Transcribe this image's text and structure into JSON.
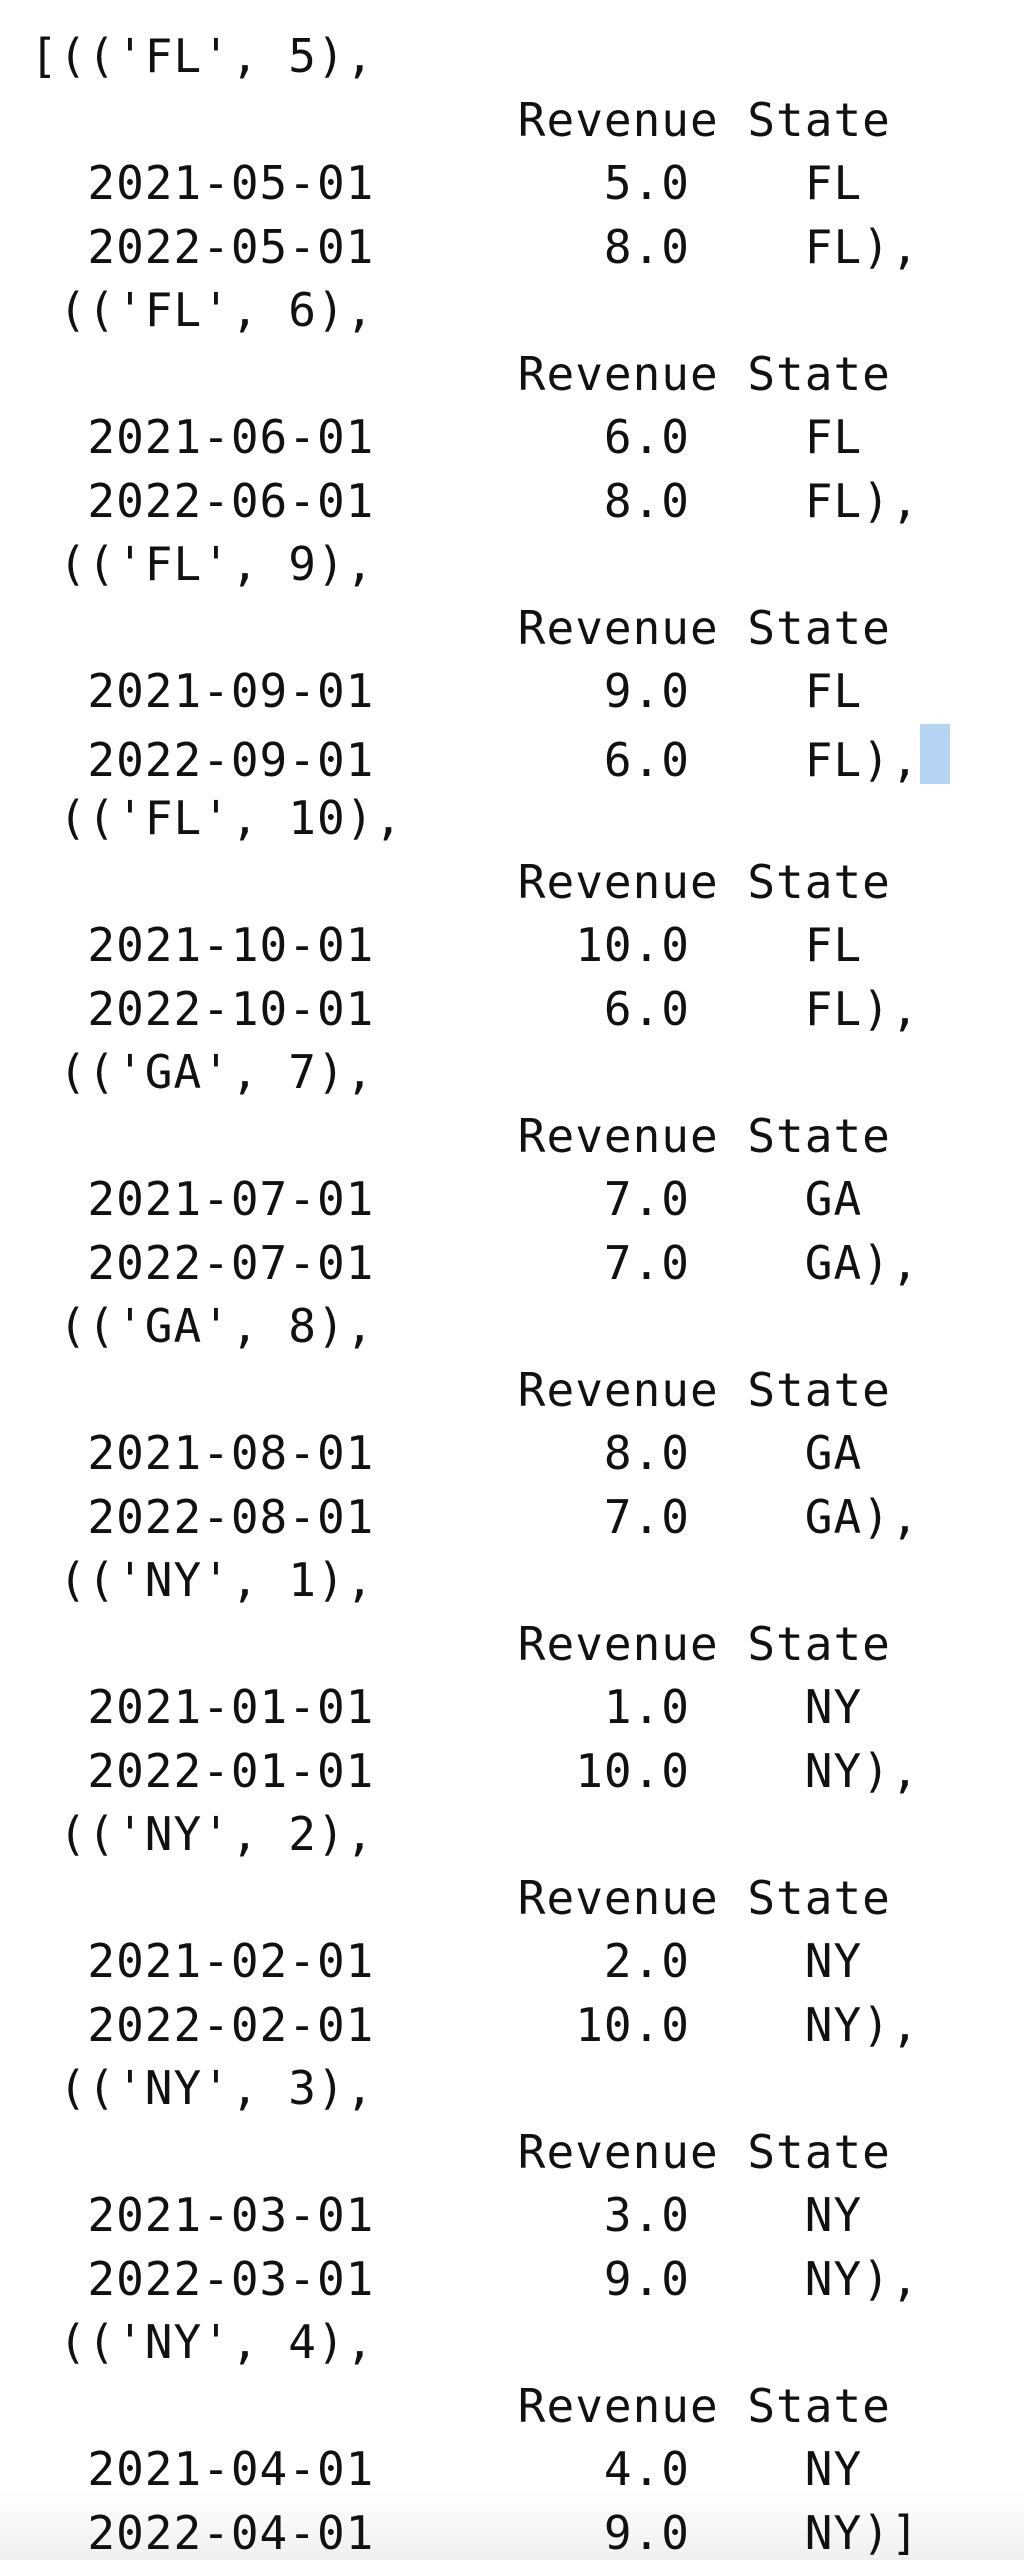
{
  "output": {
    "lines": [
      "[(('FL', 5),",
      "                 Revenue State",
      "  2021-05-01        5.0    FL",
      "  2022-05-01        8.0    FL),",
      " (('FL', 6),",
      "                 Revenue State",
      "  2021-06-01        6.0    FL",
      "  2022-06-01        8.0    FL),",
      " (('FL', 9),",
      "                 Revenue State",
      "  2021-09-01        9.0    FL",
      "  2022-09-01        6.0    FL),",
      " (('FL', 10),",
      "                 Revenue State",
      "  2021-10-01       10.0    FL",
      "  2022-10-01        6.0    FL),",
      " (('GA', 7),",
      "                 Revenue State",
      "  2021-07-01        7.0    GA",
      "  2022-07-01        7.0    GA),",
      " (('GA', 8),",
      "                 Revenue State",
      "  2021-08-01        8.0    GA",
      "  2022-08-01        7.0    GA),",
      " (('NY', 1),",
      "                 Revenue State",
      "  2021-01-01        1.0    NY",
      "  2022-01-01       10.0    NY),",
      " (('NY', 2),",
      "                 Revenue State",
      "  2021-02-01        2.0    NY",
      "  2022-02-01       10.0    NY),",
      " (('NY', 3),",
      "                 Revenue State",
      "  2021-03-01        3.0    NY",
      "  2022-03-01        9.0    NY),",
      " (('NY', 4),",
      "                 Revenue State",
      "  2021-04-01        4.0    NY",
      "  2022-04-01        9.0    NY)]"
    ],
    "selected_line": 11
  },
  "colors": {
    "text": "#111111",
    "background": "#ffffff",
    "selection": "#b5d3f3"
  }
}
